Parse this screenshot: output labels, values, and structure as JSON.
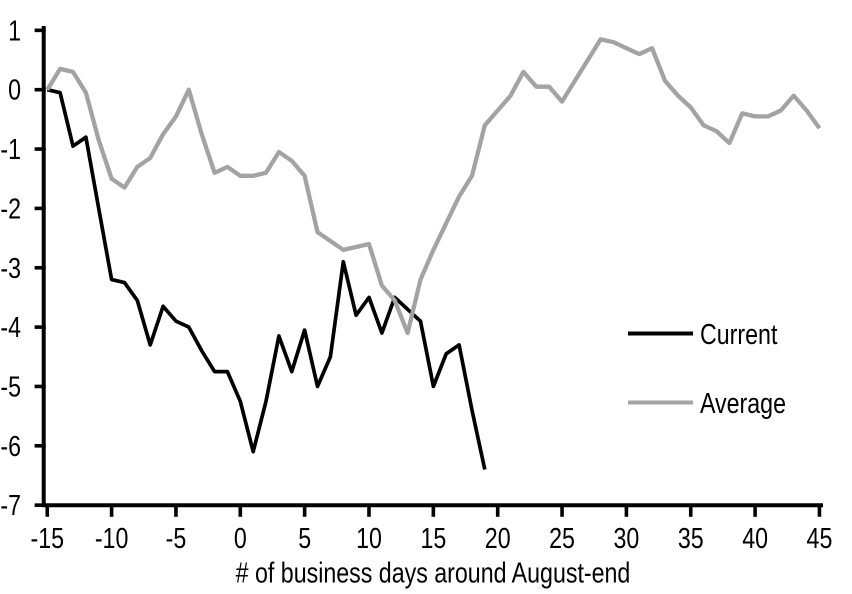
{
  "chart_data": {
    "type": "line",
    "title": "",
    "xlabel": "# of business days around August-end",
    "ylabel": "",
    "xlim": [
      -15,
      45
    ],
    "ylim": [
      -7,
      1
    ],
    "x_ticks": [
      -15,
      -10,
      -5,
      0,
      5,
      10,
      15,
      20,
      25,
      30,
      35,
      40,
      45
    ],
    "y_ticks": [
      1,
      0,
      -1,
      -2,
      -3,
      -4,
      -5,
      -6,
      -7
    ],
    "grid": false,
    "legend_position": "center-right",
    "colors": {
      "current": "#000000",
      "average": "#a3a3a3",
      "axis": "#000000",
      "background": "#ffffff"
    },
    "series": [
      {
        "name": "Current",
        "color": "#000000",
        "x": [
          -15,
          -14,
          -13,
          -12,
          -11,
          -10,
          -9,
          -8,
          -7,
          -6,
          -5,
          -4,
          -3,
          -2,
          -1,
          0,
          1,
          2,
          3,
          4,
          5,
          6,
          7,
          8,
          9,
          10,
          11,
          12,
          13,
          14,
          15,
          16,
          17,
          18,
          19
        ],
        "values": [
          0,
          -0.05,
          -0.95,
          -0.8,
          -2.0,
          -3.2,
          -3.25,
          -3.55,
          -4.3,
          -3.65,
          -3.9,
          -4.0,
          -4.4,
          -4.75,
          -4.75,
          -5.25,
          -6.1,
          -5.25,
          -4.15,
          -4.75,
          -4.05,
          -5.0,
          -4.5,
          -2.9,
          -3.8,
          -3.5,
          -4.1,
          -3.5,
          -3.7,
          -3.9,
          -5.0,
          -4.45,
          -4.3,
          -5.4,
          -6.4
        ]
      },
      {
        "name": "Average",
        "color": "#a3a3a3",
        "x": [
          -15,
          -14,
          -13,
          -12,
          -11,
          -10,
          -9,
          -8,
          -7,
          -6,
          -5,
          -4,
          -3,
          -2,
          -1,
          0,
          1,
          2,
          3,
          4,
          5,
          6,
          7,
          8,
          9,
          10,
          11,
          12,
          13,
          14,
          15,
          16,
          17,
          18,
          19,
          20,
          21,
          22,
          23,
          24,
          25,
          26,
          27,
          28,
          29,
          30,
          31,
          32,
          33,
          34,
          35,
          36,
          37,
          38,
          39,
          40,
          41,
          42,
          43,
          44,
          45
        ],
        "values": [
          0,
          0.35,
          0.3,
          -0.05,
          -0.85,
          -1.5,
          -1.65,
          -1.3,
          -1.15,
          -0.75,
          -0.45,
          0.0,
          -0.75,
          -1.4,
          -1.3,
          -1.45,
          -1.45,
          -1.4,
          -1.05,
          -1.2,
          -1.45,
          -2.4,
          -2.55,
          -2.7,
          -2.65,
          -2.6,
          -3.3,
          -3.55,
          -4.1,
          -3.2,
          -2.7,
          -2.25,
          -1.8,
          -1.45,
          -0.6,
          -0.35,
          -0.1,
          0.3,
          0.05,
          0.05,
          -0.2,
          0.15,
          0.5,
          0.85,
          0.8,
          0.7,
          0.6,
          0.7,
          0.15,
          -0.1,
          -0.3,
          -0.6,
          -0.7,
          -0.9,
          -0.4,
          -0.45,
          -0.45,
          -0.35,
          -0.1,
          -0.35,
          -0.65
        ]
      }
    ]
  }
}
